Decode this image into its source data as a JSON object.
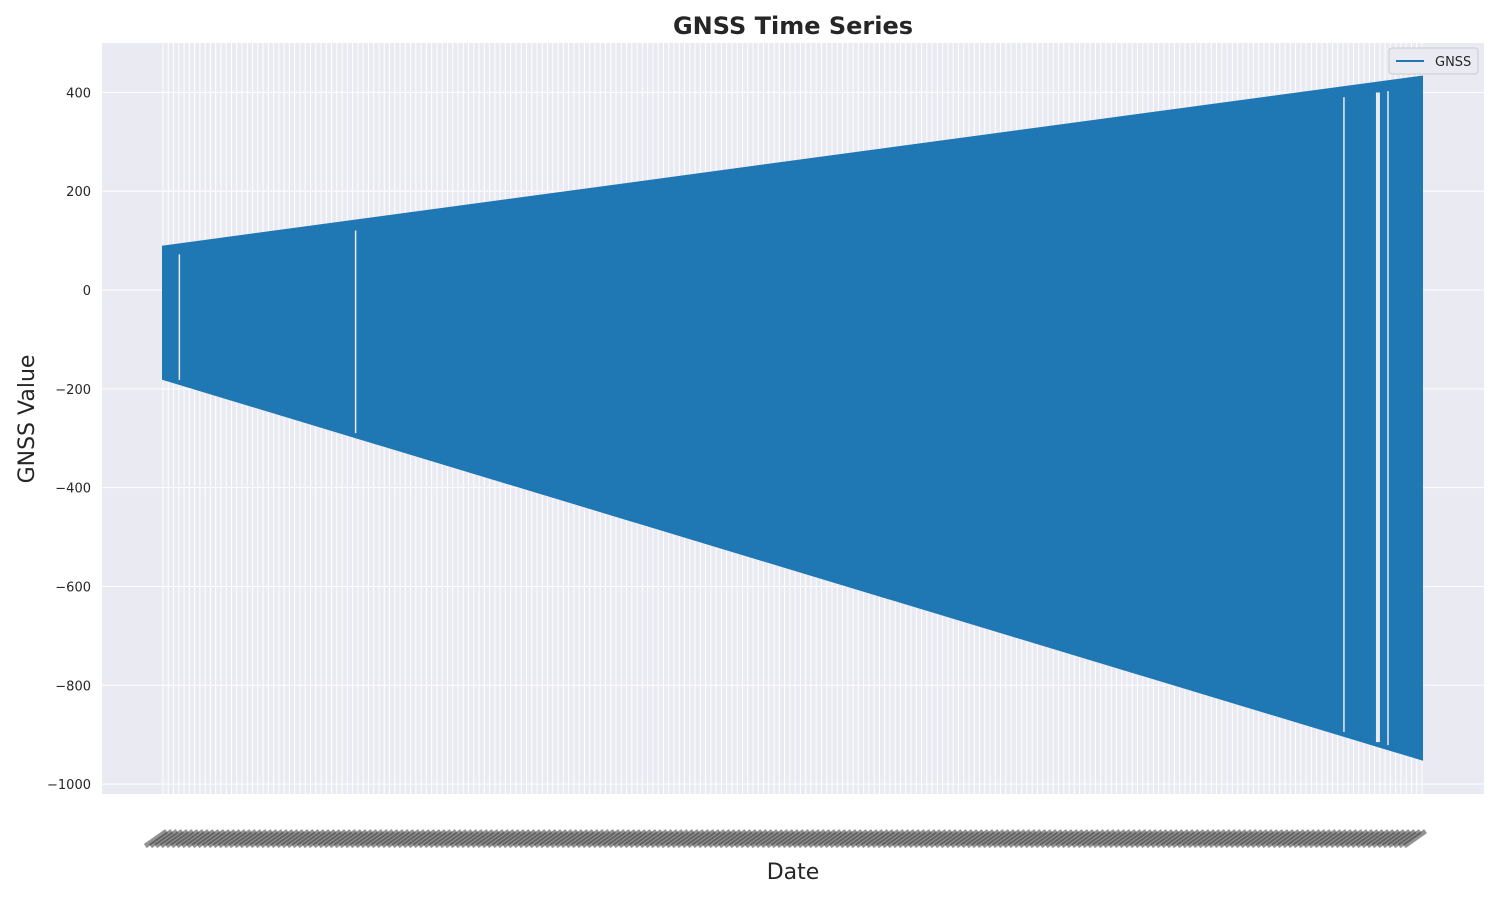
{
  "chart_data": {
    "type": "line",
    "title": "GNSS Time Series",
    "xlabel": "Date",
    "ylabel": "GNSS Value",
    "ylim": [
      -1020,
      500
    ],
    "yticks": [
      400,
      200,
      0,
      -200,
      -400,
      -600,
      -800,
      -1000
    ],
    "ytick_labels": [
      "400",
      "200",
      "0",
      "−200",
      "−400",
      "−600",
      "−800",
      "−1000"
    ],
    "grid": true,
    "legend_position": "top-right",
    "series": [
      {
        "name": "GNSS",
        "color": "#1f77b4",
        "envelope": {
          "start": {
            "high": 88,
            "low": -180
          },
          "end": {
            "high": 432,
            "low": -950
          }
        },
        "gaps_fraction": [
          0.013,
          0.153,
          0.938,
          0.965,
          0.973
        ]
      }
    ],
    "legend": {
      "entries": [
        "GNSS"
      ]
    }
  }
}
